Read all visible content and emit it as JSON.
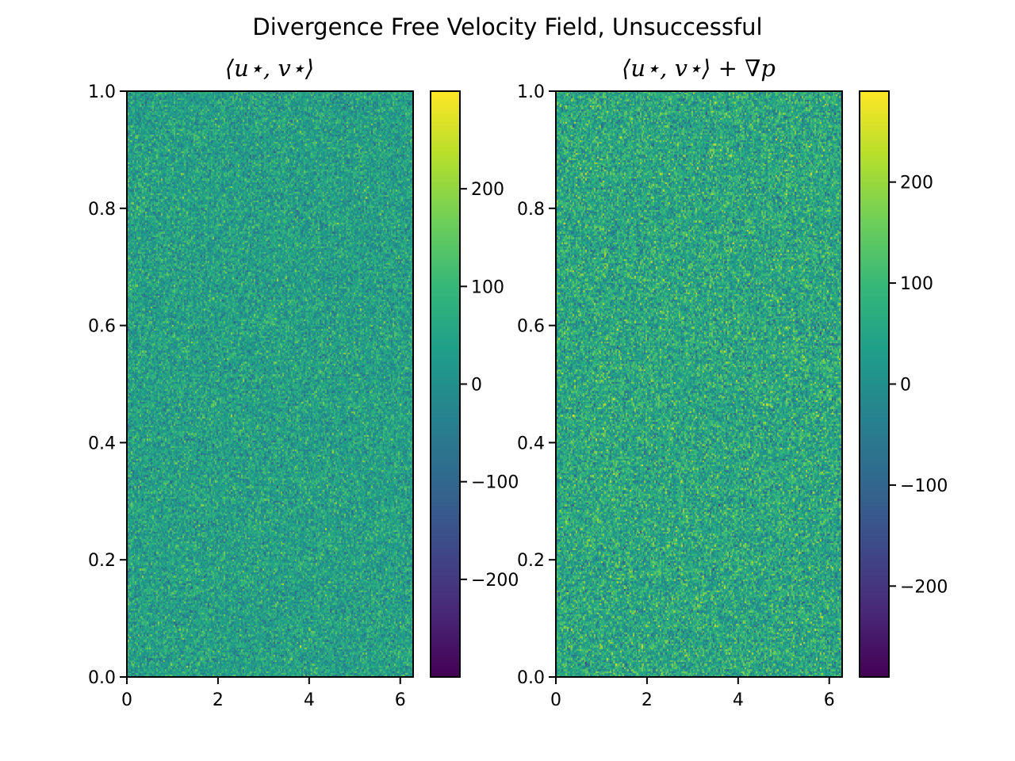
{
  "figure": {
    "suptitle": "Divergence Free Velocity Field, Unsuccessful"
  },
  "colors": {
    "viridis": [
      "#440154",
      "#482878",
      "#3e4a89",
      "#31688e",
      "#26828e",
      "#1f9e89",
      "#35b779",
      "#6ece58",
      "#b5de2b",
      "#fde725"
    ]
  },
  "chart_data": [
    {
      "type": "heatmap",
      "title": "⟨u⋆, v⋆⟩",
      "xlim": [
        0,
        6.283
      ],
      "ylim": [
        0,
        1.0
      ],
      "xticks": [
        0,
        2,
        4,
        6
      ],
      "yticks": [
        0.0,
        0.2,
        0.4,
        0.6,
        0.8,
        1.0
      ],
      "xtick_labels": [
        "0",
        "2",
        "4",
        "6"
      ],
      "ytick_labels": [
        "0.0",
        "0.2",
        "0.4",
        "0.6",
        "0.8",
        "1.0"
      ],
      "colorbar": {
        "min": -300,
        "max": 300,
        "ticks": [
          -200,
          -100,
          0,
          100,
          200
        ],
        "tick_labels": [
          "−200",
          "−100",
          "0",
          "100",
          "200"
        ],
        "colormap": "viridis"
      },
      "grid": false,
      "field_description": "random noise",
      "field_stats": {
        "mean": 40,
        "std": 55
      }
    },
    {
      "type": "heatmap",
      "title": "⟨u⋆, v⋆⟩ + ∇p",
      "xlim": [
        0,
        6.283
      ],
      "ylim": [
        0,
        1.0
      ],
      "xticks": [
        0,
        2,
        4,
        6
      ],
      "yticks": [
        0.0,
        0.2,
        0.4,
        0.6,
        0.8,
        1.0
      ],
      "xtick_labels": [
        "0",
        "2",
        "4",
        "6"
      ],
      "ytick_labels": [
        "0.0",
        "0.2",
        "0.4",
        "0.6",
        "0.8",
        "1.0"
      ],
      "colorbar": {
        "min": -290,
        "max": 290,
        "ticks": [
          -200,
          -100,
          0,
          100,
          200
        ],
        "tick_labels": [
          "−200",
          "−100",
          "0",
          "100",
          "200"
        ],
        "colormap": "viridis"
      },
      "grid": false,
      "field_description": "random noise",
      "field_stats": {
        "mean": 55,
        "std": 65
      }
    }
  ]
}
